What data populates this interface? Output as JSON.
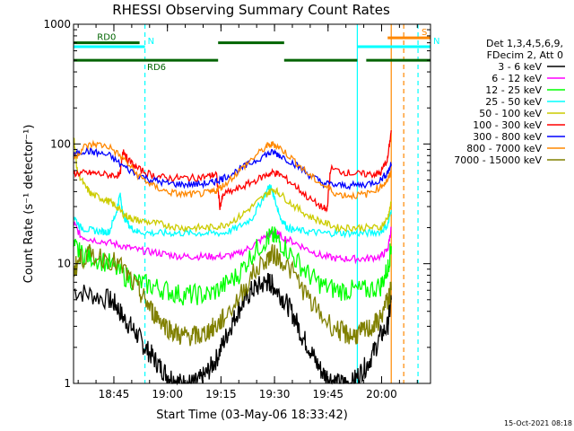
{
  "chart_data": {
    "type": "line",
    "title": "RHESSI Observing Summary Count Rates",
    "xlabel": "Start Time (03-May-06 18:33:42)",
    "ylabel": "Count Rate (s⁻¹ detector⁻¹)",
    "yscale": "log",
    "ylim": [
      1,
      1000
    ],
    "xlim_minutes": [
      0,
      100
    ],
    "x_ticks": [
      {
        "minute": 11.3,
        "label": "18:45"
      },
      {
        "minute": 26.3,
        "label": "19:00"
      },
      {
        "minute": 41.3,
        "label": "19:15"
      },
      {
        "minute": 56.3,
        "label": "19:30"
      },
      {
        "minute": 71.3,
        "label": "19:45"
      },
      {
        "minute": 86.3,
        "label": "20:00"
      }
    ],
    "y_ticks": [
      {
        "value": 1,
        "label": "1"
      },
      {
        "value": 10,
        "label": "10"
      },
      {
        "value": 100,
        "label": "100"
      },
      {
        "value": 1000,
        "label": "1000"
      }
    ],
    "legend_header": [
      "Det 1,3,4,5,6,9,",
      "FDecim 2, Att 0"
    ],
    "legend_position": "right",
    "series": [
      {
        "name": "3 - 6 keV",
        "color": "#000000",
        "x": [
          0,
          5,
          10,
          12,
          14,
          16,
          18,
          20,
          22,
          24,
          26,
          28,
          30,
          32,
          34,
          36,
          38,
          40,
          42,
          44,
          46,
          48,
          50,
          52,
          54,
          55,
          56,
          58,
          60,
          62,
          64,
          66,
          68,
          70,
          72,
          74,
          76,
          78,
          80,
          82,
          84,
          86,
          88,
          89
        ],
        "y": [
          6,
          5.5,
          5,
          4.5,
          3.5,
          3,
          2.5,
          2,
          1.7,
          1.4,
          1.2,
          1.1,
          1.0,
          1.0,
          1.0,
          1.1,
          1.3,
          1.6,
          2.2,
          3,
          4,
          5,
          6,
          6.5,
          7,
          7,
          6.5,
          5.5,
          4.5,
          3.5,
          2.5,
          2,
          1.5,
          1.2,
          1.1,
          1.0,
          1.0,
          1.0,
          1.2,
          1.4,
          1.8,
          2.5,
          3,
          5
        ]
      },
      {
        "name": "6 - 12 keV",
        "color": "#ff00ff",
        "x": [
          0,
          2,
          5,
          10,
          14,
          18,
          22,
          26,
          30,
          34,
          38,
          42,
          46,
          50,
          54,
          56,
          58,
          62,
          66,
          70,
          74,
          78,
          82,
          86,
          88,
          89
        ],
        "y": [
          22,
          17,
          16,
          15,
          14,
          13,
          12.5,
          12,
          11.5,
          11.5,
          11.5,
          11.5,
          12,
          14,
          17,
          18,
          17,
          15,
          13,
          11.5,
          11,
          11,
          11,
          11.5,
          13,
          20
        ]
      },
      {
        "name": "12 - 25 keV",
        "color": "#00ff00",
        "x": [
          0,
          2,
          5,
          10,
          14,
          18,
          22,
          26,
          30,
          34,
          38,
          42,
          46,
          50,
          54,
          56,
          58,
          62,
          66,
          70,
          74,
          78,
          82,
          86,
          88,
          89
        ],
        "y": [
          14,
          12,
          11.5,
          10,
          8,
          7,
          6.5,
          6,
          5.5,
          5.5,
          5.5,
          6.5,
          8,
          12,
          16,
          17,
          15,
          11,
          8,
          6.5,
          6,
          6,
          6,
          6.5,
          9,
          14
        ]
      },
      {
        "name": "25 - 50 keV",
        "color": "#00ffff",
        "x": [
          0,
          2,
          5,
          8,
          10,
          12,
          13,
          14,
          16,
          18,
          22,
          26,
          30,
          34,
          38,
          42,
          46,
          50,
          53,
          55,
          56,
          58,
          60,
          62,
          66,
          70,
          74,
          78,
          82,
          86,
          88,
          89
        ],
        "y": [
          25,
          20,
          19,
          18.5,
          18.5,
          27,
          38,
          25,
          20,
          18.5,
          18,
          18,
          18,
          18,
          18,
          18,
          20,
          24,
          35,
          45,
          38,
          24,
          20,
          19,
          18.5,
          18,
          18,
          18,
          18,
          18.5,
          21,
          28
        ]
      },
      {
        "name": "50 - 100 keV",
        "color": "#cccc00",
        "x": [
          0,
          1,
          3,
          5,
          8,
          10,
          12,
          14,
          16,
          18,
          22,
          26,
          30,
          34,
          38,
          42,
          46,
          50,
          54,
          56,
          58,
          62,
          66,
          70,
          74,
          78,
          82,
          86,
          88,
          89
        ],
        "y": [
          120,
          60,
          45,
          38,
          35,
          33,
          30,
          26,
          24,
          23,
          22,
          21,
          20,
          20,
          20,
          21,
          24,
          30,
          38,
          42,
          38,
          30,
          25,
          22,
          20,
          20,
          20,
          20,
          24,
          32
        ]
      },
      {
        "name": "100 - 300 keV",
        "color": "#ff0000",
        "x": [
          0,
          3,
          6,
          10,
          13,
          14,
          15,
          18,
          22,
          26,
          30,
          34,
          38,
          40,
          41,
          42,
          46,
          50,
          54,
          56,
          58,
          62,
          66,
          70,
          71,
          72,
          76,
          80,
          84,
          86,
          88,
          89
        ],
        "y": [
          57,
          57,
          57,
          55,
          55,
          90,
          75,
          62,
          55,
          52,
          52,
          52,
          54,
          56,
          30,
          38,
          42,
          48,
          55,
          58,
          55,
          45,
          35,
          29,
          28,
          62,
          58,
          56,
          56,
          57,
          75,
          130
        ]
      },
      {
        "name": "300 - 800 keV",
        "color": "#0000ff",
        "x": [
          0,
          3,
          6,
          10,
          14,
          18,
          22,
          26,
          30,
          34,
          38,
          40,
          42,
          46,
          50,
          54,
          56,
          58,
          62,
          66,
          70,
          74,
          78,
          82,
          86,
          88,
          89
        ],
        "y": [
          80,
          88,
          85,
          80,
          65,
          55,
          50,
          47,
          46,
          46,
          47,
          49,
          52,
          60,
          70,
          82,
          85,
          80,
          68,
          55,
          47,
          45,
          45,
          46,
          50,
          58,
          68
        ]
      },
      {
        "name": "800 - 7000 keV",
        "color": "#ff8800",
        "x": [
          0,
          3,
          6,
          10,
          14,
          18,
          22,
          26,
          30,
          34,
          38,
          40,
          42,
          46,
          50,
          54,
          56,
          58,
          62,
          66,
          70,
          74,
          78,
          82,
          86,
          88,
          89
        ],
        "y": [
          75,
          95,
          100,
          95,
          75,
          55,
          45,
          40,
          38,
          38,
          39,
          41,
          45,
          58,
          75,
          95,
          100,
          92,
          72,
          55,
          45,
          38,
          37,
          38,
          44,
          50,
          58
        ]
      },
      {
        "name": "7000 - 15000 keV",
        "color": "#808000",
        "x": [
          0,
          2,
          5,
          10,
          14,
          18,
          20,
          22,
          24,
          26,
          28,
          30,
          32,
          34,
          36,
          38,
          40,
          42,
          46,
          50,
          54,
          56,
          58,
          62,
          66,
          70,
          74,
          76,
          78,
          80,
          82,
          84,
          86,
          88,
          89
        ],
        "y": [
          9,
          11,
          12,
          11,
          9,
          6,
          5,
          4,
          3.5,
          3,
          2.7,
          2.5,
          2.5,
          2.5,
          2.5,
          2.8,
          3,
          3.5,
          5,
          8,
          11,
          12,
          11,
          8,
          5,
          3.5,
          2.8,
          2.6,
          2.5,
          2.6,
          2.8,
          3,
          3.5,
          5,
          6
        ]
      }
    ],
    "status_bars": [
      {
        "label": "RD0",
        "color": "#006400",
        "segments": [
          [
            0,
            18.5
          ],
          [
            40.5,
            59
          ]
        ],
        "value": 700
      },
      {
        "label": "RD6",
        "color": "#006400",
        "segments": [
          [
            0,
            40.5
          ],
          [
            59,
            79.5
          ],
          [
            82,
            100
          ]
        ],
        "value": 500
      },
      {
        "label": "N",
        "color": "#00ffff",
        "segments": [
          [
            0,
            20
          ]
        ],
        "value": 650
      },
      {
        "label": "N",
        "color": "#00ffff",
        "segments": [
          [
            79.5,
            100
          ]
        ],
        "value": 650
      },
      {
        "label": "S",
        "color": "#ff8800",
        "segments": [
          [
            88,
            100
          ]
        ],
        "value": 770
      }
    ],
    "markers": [
      {
        "minute": 20,
        "color": "#00ffff",
        "style": "dashed"
      },
      {
        "minute": 79.5,
        "color": "#00ffff",
        "style": "solid"
      },
      {
        "minute": 96.5,
        "color": "#00ffff",
        "style": "dashed"
      },
      {
        "minute": 89,
        "color": "#ff8800",
        "style": "solid"
      },
      {
        "minute": 92.5,
        "color": "#ff8800",
        "style": "dashed"
      }
    ],
    "footer": "15-Oct-2021 08:18"
  }
}
